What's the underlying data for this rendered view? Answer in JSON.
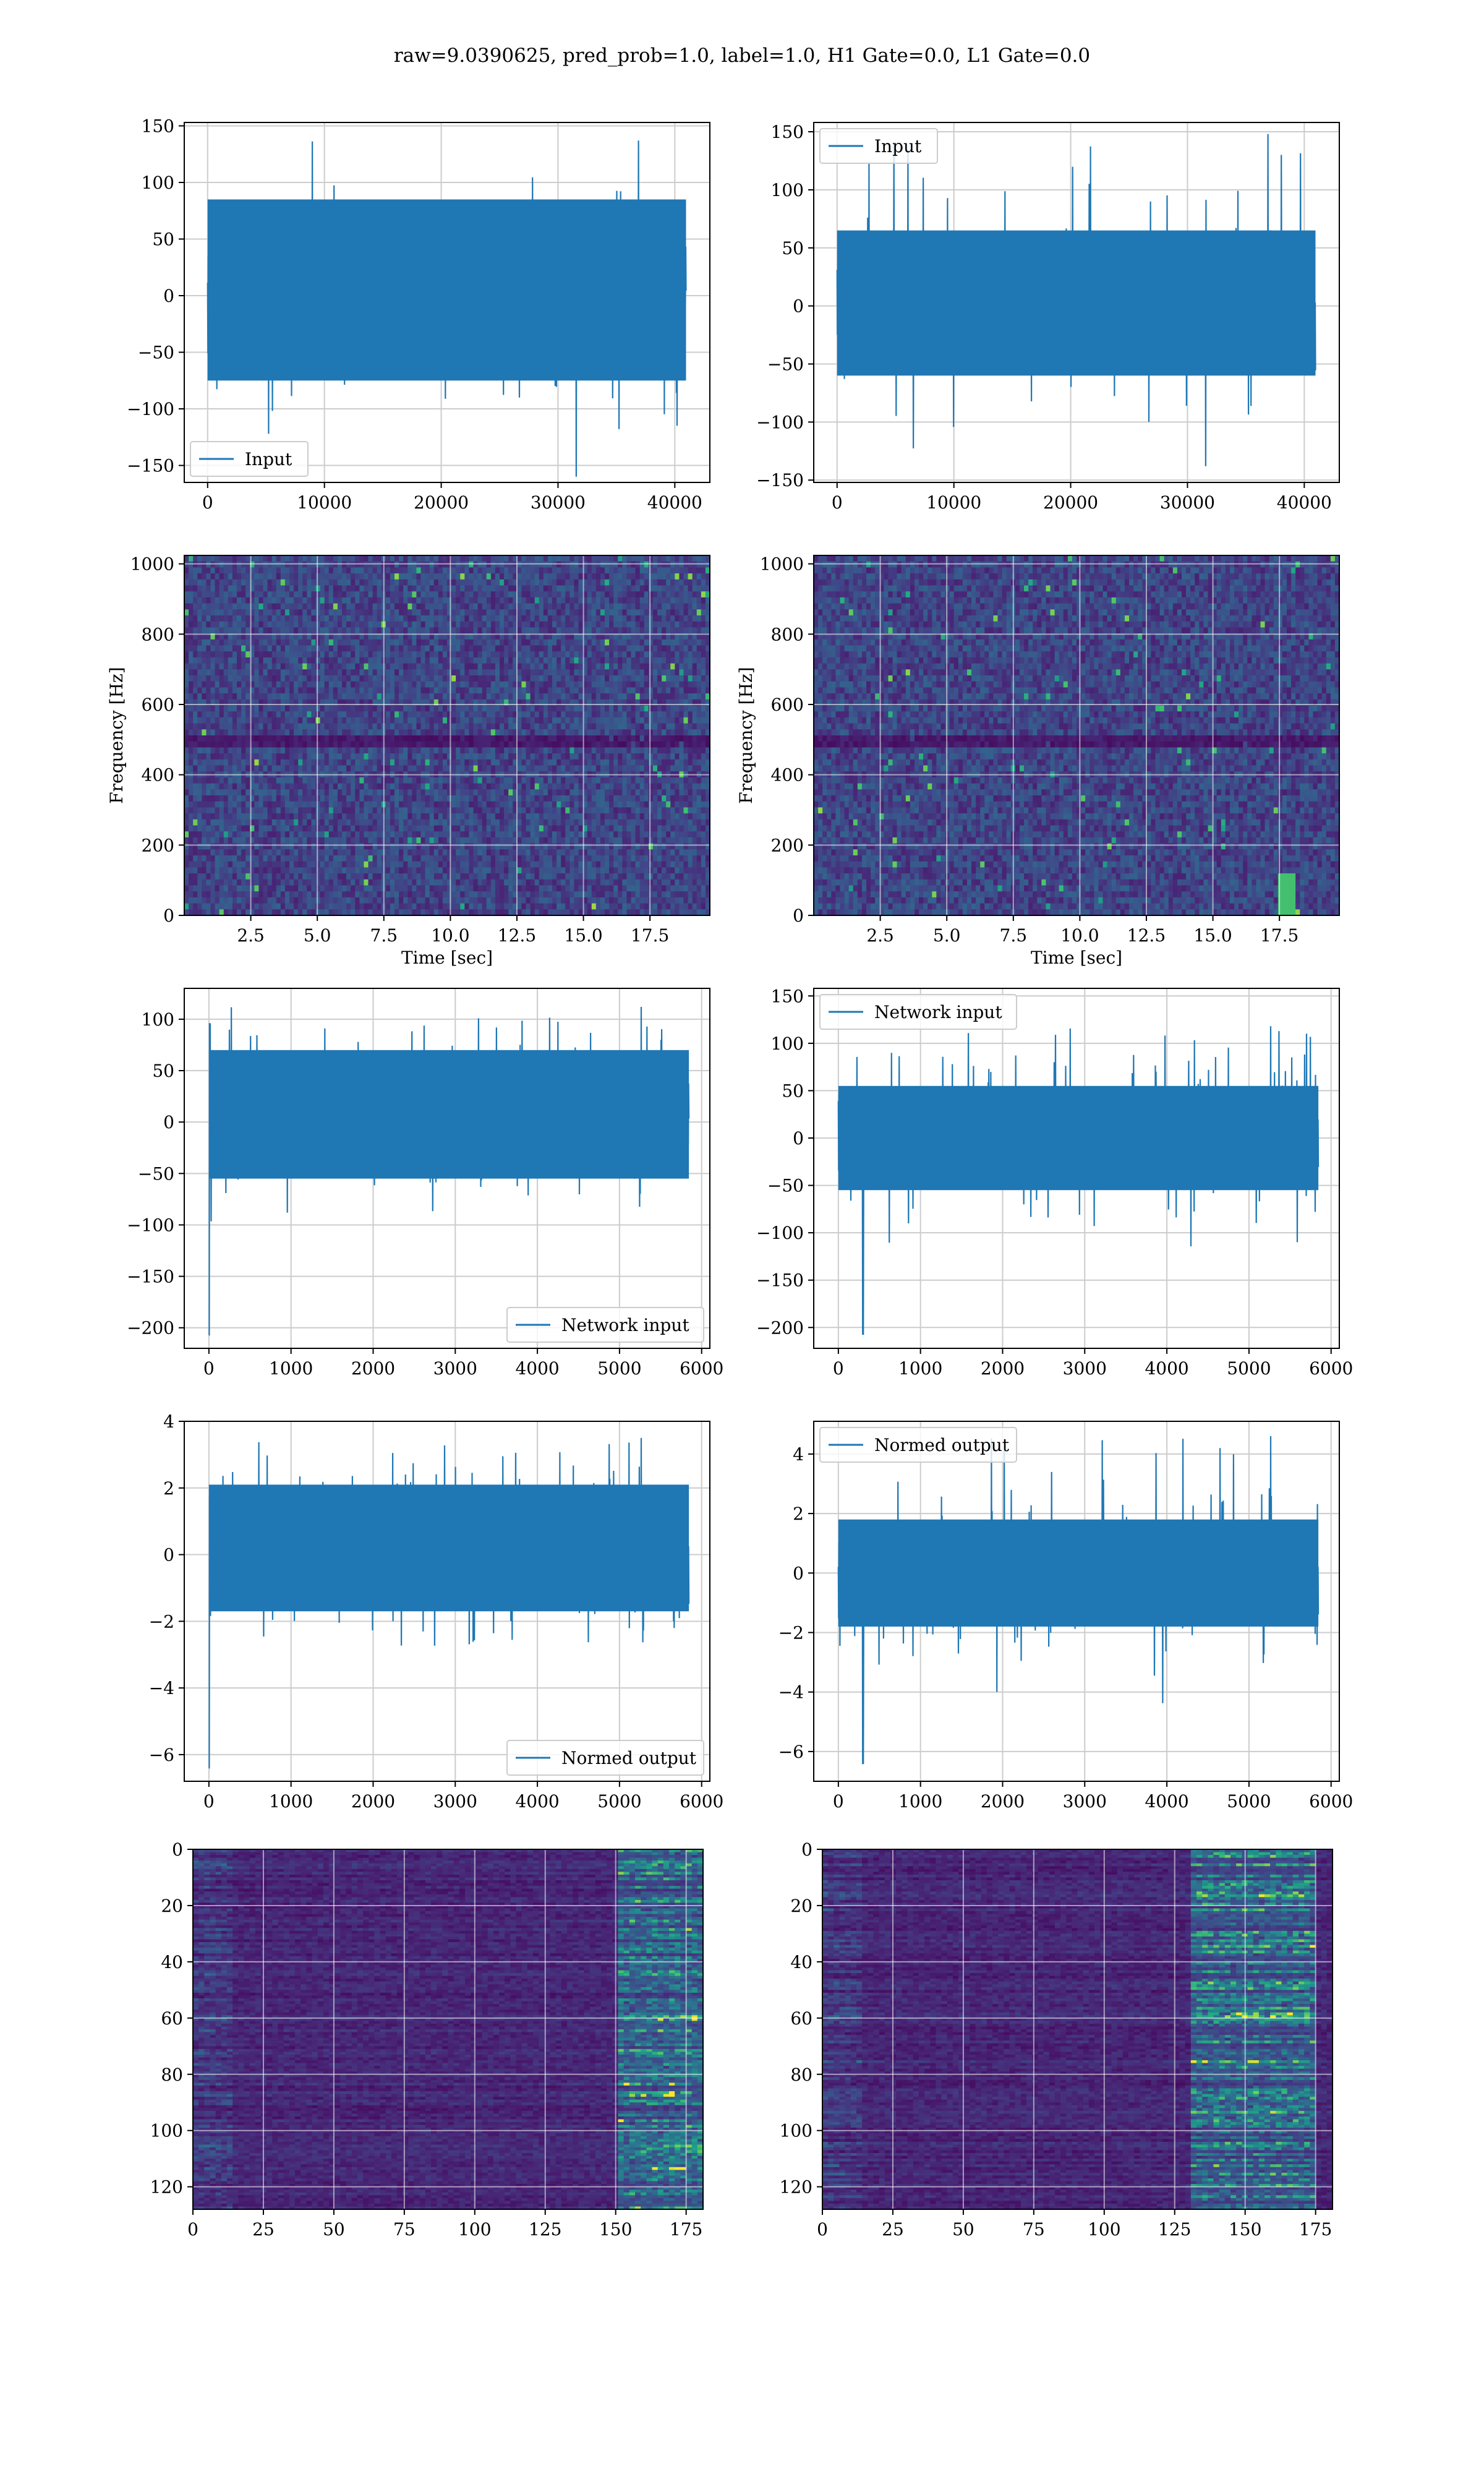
{
  "suptitle": "raw=9.0390625, pred_prob=1.0, label=1.0, H1 Gate=0.0, L1 Gate=0.0",
  "colors": {
    "line": "#1f77b4",
    "grid": "#cccccc",
    "viridis_low": "#440154",
    "viridis_mid": "#21918c",
    "viridis_high": "#fde725"
  },
  "chart_data": [
    {
      "id": "input-h1",
      "type": "line",
      "subplot": "row1-left",
      "series": [
        {
          "name": "Input",
          "envelope": {
            "n": 40960,
            "core": [
              -75,
              85
            ],
            "peak_max": 137,
            "peak_min": -160
          }
        }
      ],
      "xlim": [
        -2000,
        43000
      ],
      "ylim": [
        -165,
        153
      ],
      "xticks": [
        0,
        10000,
        20000,
        30000,
        40000
      ],
      "yticks": [
        -150,
        -100,
        -50,
        0,
        50,
        100,
        150
      ],
      "legend": "lower left",
      "grid": true
    },
    {
      "id": "input-l1",
      "type": "line",
      "subplot": "row1-right",
      "series": [
        {
          "name": "Input",
          "envelope": {
            "n": 40960,
            "core": [
              -60,
              65
            ],
            "peak_max": 148,
            "peak_min": -138
          }
        }
      ],
      "xlim": [
        -2000,
        43000
      ],
      "ylim": [
        -152,
        158
      ],
      "xticks": [
        0,
        10000,
        20000,
        30000,
        40000
      ],
      "yticks": [
        -150,
        -100,
        -50,
        0,
        50,
        100,
        150
      ],
      "legend": "upper left",
      "grid": true
    },
    {
      "id": "spectrogram-h1",
      "type": "heatmap",
      "subplot": "row2-left",
      "xlabel": "Time [sec]",
      "ylabel": "Frequency [Hz]",
      "xlim": [
        0,
        19.75
      ],
      "ylim": [
        0,
        1024
      ],
      "xticks": [
        2.5,
        5.0,
        7.5,
        10.0,
        12.5,
        15.0,
        17.5
      ],
      "yticks": [
        0,
        200,
        400,
        600,
        800,
        1000
      ],
      "grid": true,
      "colormap": "viridis",
      "notes": {
        "dark_band_hz": [
          470,
          520
        ]
      }
    },
    {
      "id": "spectrogram-l1",
      "type": "heatmap",
      "subplot": "row2-right",
      "xlabel": "Time [sec]",
      "ylabel": "Frequency [Hz]",
      "xlim": [
        0,
        19.75
      ],
      "ylim": [
        0,
        1024
      ],
      "xticks": [
        2.5,
        5.0,
        7.5,
        10.0,
        12.5,
        15.0,
        17.5
      ],
      "yticks": [
        0,
        200,
        400,
        600,
        800,
        1000
      ],
      "grid": true,
      "colormap": "viridis",
      "notes": {
        "dark_band_hz": [
          480,
          520
        ],
        "chirp_at_sec": 17.8
      }
    },
    {
      "id": "network-input-h1",
      "type": "line",
      "subplot": "row3-left",
      "series": [
        {
          "name": "Network input",
          "envelope": {
            "n": 5845,
            "core": [
              -55,
              70
            ],
            "peak_max": 112,
            "peak_min": -207,
            "spike_x": 0
          }
        }
      ],
      "xlim": [
        -300,
        6100
      ],
      "ylim": [
        -220,
        130
      ],
      "xticks": [
        0,
        1000,
        2000,
        3000,
        4000,
        5000,
        6000
      ],
      "yticks": [
        -200,
        -150,
        -100,
        -50,
        0,
        50,
        100
      ],
      "legend": "lower right",
      "grid": true
    },
    {
      "id": "network-input-l1",
      "type": "line",
      "subplot": "row3-right",
      "series": [
        {
          "name": "Network input",
          "envelope": {
            "n": 5845,
            "core": [
              -55,
              55
            ],
            "peak_max": 118,
            "peak_min": -207,
            "spike_x": 300
          }
        }
      ],
      "xlim": [
        -300,
        6100
      ],
      "ylim": [
        -222,
        158
      ],
      "xticks": [
        0,
        1000,
        2000,
        3000,
        4000,
        5000,
        6000
      ],
      "yticks": [
        -200,
        -150,
        -100,
        -50,
        0,
        50,
        100,
        150
      ],
      "legend": "upper left",
      "grid": true
    },
    {
      "id": "normed-output-h1",
      "type": "line",
      "subplot": "row4-left",
      "series": [
        {
          "name": "Normed output",
          "envelope": {
            "n": 5845,
            "core": [
              -1.7,
              2.1
            ],
            "peak_max": 3.5,
            "peak_min": -6.4,
            "spike_x": 0
          }
        }
      ],
      "xlim": [
        -300,
        6100
      ],
      "ylim": [
        -6.8,
        4.0
      ],
      "xticks": [
        0,
        1000,
        2000,
        3000,
        4000,
        5000,
        6000
      ],
      "yticks": [
        -6,
        -4,
        -2,
        0,
        2,
        4
      ],
      "legend": "lower right",
      "grid": true
    },
    {
      "id": "normed-output-l1",
      "type": "line",
      "subplot": "row4-right",
      "series": [
        {
          "name": "Normed output",
          "envelope": {
            "n": 5845,
            "core": [
              -1.8,
              1.8
            ],
            "peak_max": 4.6,
            "peak_min": -6.4,
            "spike_x": 300
          }
        }
      ],
      "xlim": [
        -300,
        6100
      ],
      "ylim": [
        -7.0,
        5.1
      ],
      "xticks": [
        0,
        1000,
        2000,
        3000,
        4000,
        5000,
        6000
      ],
      "yticks": [
        -6,
        -4,
        -2,
        0,
        2,
        4
      ],
      "legend": "upper left",
      "grid": true
    },
    {
      "id": "features-h1",
      "type": "heatmap",
      "subplot": "row5-left",
      "xlim": [
        0,
        181
      ],
      "ylim": [
        128,
        0
      ],
      "xticks": [
        0,
        25,
        50,
        75,
        100,
        125,
        150,
        175
      ],
      "yticks": [
        0,
        20,
        40,
        60,
        80,
        100,
        120
      ],
      "grid": true,
      "colormap": "viridis",
      "notes": {
        "bright_columns": [
          150,
          181
        ]
      }
    },
    {
      "id": "features-l1",
      "type": "heatmap",
      "subplot": "row5-right",
      "xlim": [
        0,
        181
      ],
      "ylim": [
        128,
        0
      ],
      "xticks": [
        0,
        25,
        50,
        75,
        100,
        125,
        150,
        175
      ],
      "yticks": [
        0,
        20,
        40,
        60,
        80,
        100,
        120
      ],
      "grid": true,
      "colormap": "viridis",
      "notes": {
        "bright_columns": [
          130,
          175
        ]
      }
    }
  ]
}
